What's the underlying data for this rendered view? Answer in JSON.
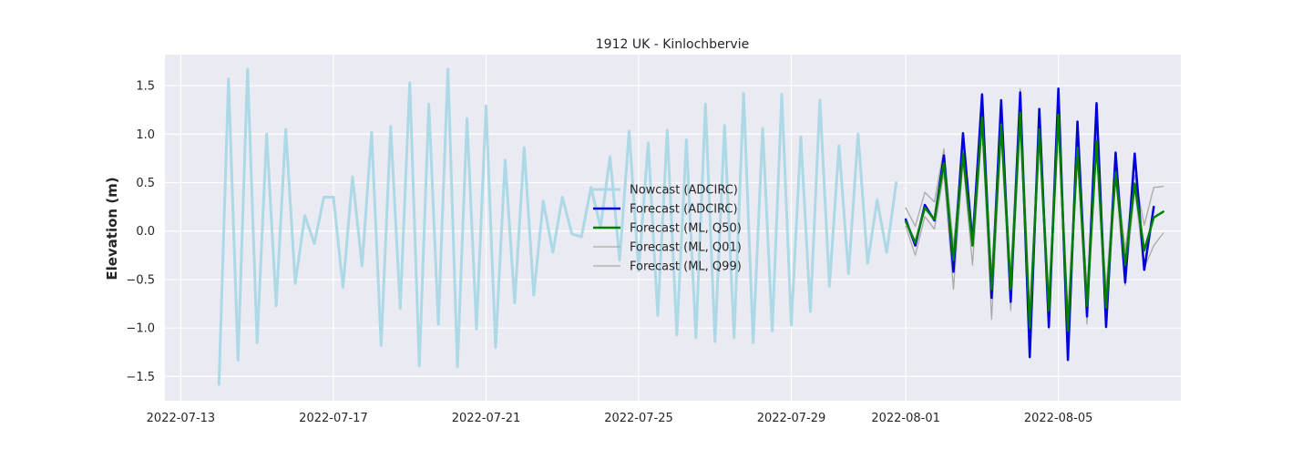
{
  "chart_data": {
    "type": "line",
    "title": "1912 UK - Kinlochbervie",
    "xlabel": "",
    "ylabel": "Elevation (m)",
    "x_range": [
      "2022-07-12T14:00",
      "2022-08-08T05:00"
    ],
    "ylim": [
      -1.75,
      1.82
    ],
    "grid": true,
    "legend_position": "center",
    "x_ticks": [
      "2022-07-13",
      "2022-07-17",
      "2022-07-21",
      "2022-07-25",
      "2022-07-29",
      "2022-08-01",
      "2022-08-05"
    ],
    "y_ticks": [
      -1.5,
      -1.0,
      -0.5,
      0.0,
      0.5,
      1.0,
      1.5
    ],
    "y_tick_labels": [
      "−1.5",
      "−1.0",
      "−0.5",
      "0.0",
      "0.5",
      "1.0",
      "1.5"
    ],
    "series": [
      {
        "name": "Nowcast (ADCIRC)",
        "color": "#add8e6",
        "width": 3,
        "start": "2022-07-14T00:00",
        "step_hours": 6,
        "values": [
          -1.58,
          1.57,
          -1.33,
          1.67,
          -1.15,
          1.0,
          -0.77,
          1.05,
          -0.54,
          0.16,
          -0.13,
          0.35,
          0.35,
          -0.58,
          0.56,
          -0.36,
          1.02,
          -1.18,
          1.08,
          -0.8,
          1.53,
          -1.39,
          1.31,
          -0.96,
          1.67,
          -1.4,
          1.16,
          -1.01,
          1.29,
          -1.2,
          0.73,
          -0.74,
          0.86,
          -0.66,
          0.31,
          -0.22,
          0.35,
          -0.03,
          -0.06,
          0.45,
          0.04,
          0.77,
          -0.3,
          1.03,
          -0.41,
          0.91,
          -0.87,
          1.04,
          -1.07,
          0.94,
          -1.1,
          1.31,
          -1.14,
          1.09,
          -1.1,
          1.42,
          -1.15,
          1.06,
          -1.03,
          1.41,
          -0.97,
          0.97,
          -0.83,
          1.35,
          -0.57,
          0.88,
          -0.44,
          1.0,
          -0.33,
          0.32,
          -0.22,
          0.5
        ]
      },
      {
        "name": "Forecast (ADCIRC)",
        "color": "#0000dd",
        "width": 2.5,
        "start": "2022-08-01T00:00",
        "step_hours": 6,
        "values": [
          0.12,
          -0.15,
          0.27,
          0.11,
          0.78,
          -0.42,
          1.01,
          -0.13,
          1.41,
          -0.69,
          1.35,
          -0.73,
          1.43,
          -1.3,
          1.26,
          -0.99,
          1.47,
          -1.33,
          1.13,
          -0.88,
          1.32,
          -0.99,
          0.81,
          -0.53,
          0.8,
          -0.4,
          0.25
        ]
      },
      {
        "name": "Forecast (ML, Q50)",
        "color": "#008000",
        "width": 2.5,
        "start": "2022-08-01T00:00",
        "step_hours": 6,
        "values": [
          0.1,
          -0.12,
          0.24,
          0.12,
          0.7,
          -0.3,
          0.8,
          -0.15,
          1.17,
          -0.6,
          1.1,
          -0.6,
          1.22,
          -1.0,
          1.05,
          -0.82,
          1.2,
          -1.03,
          0.86,
          -0.77,
          0.93,
          -0.79,
          0.61,
          -0.35,
          0.49,
          -0.2,
          0.14,
          0.2
        ]
      },
      {
        "name": "Forecast (ML, Q01)",
        "color": "#aaaaaa",
        "width": 1.3,
        "start": "2022-08-01T00:00",
        "step_hours": 6,
        "values": [
          0.05,
          -0.25,
          0.15,
          0.02,
          0.6,
          -0.6,
          0.72,
          -0.35,
          1.07,
          -0.91,
          1.0,
          -0.82,
          1.11,
          -1.2,
          0.95,
          -1.01,
          1.1,
          -1.22,
          0.79,
          -0.96,
          0.87,
          -0.98,
          0.55,
          -0.56,
          0.44,
          -0.38,
          -0.15,
          -0.02
        ]
      },
      {
        "name": "Forecast (ML, Q99)",
        "color": "#aaaaaa",
        "width": 1.3,
        "start": "2022-08-01T00:00",
        "step_hours": 6,
        "values": [
          0.24,
          0.05,
          0.4,
          0.3,
          0.85,
          -0.15,
          0.92,
          0.0,
          1.28,
          -0.45,
          1.22,
          -0.45,
          1.47,
          -0.82,
          1.15,
          -0.65,
          1.29,
          -0.85,
          0.97,
          -0.58,
          1.03,
          -0.6,
          0.72,
          -0.2,
          0.58,
          0.06,
          0.45,
          0.46
        ]
      }
    ]
  }
}
